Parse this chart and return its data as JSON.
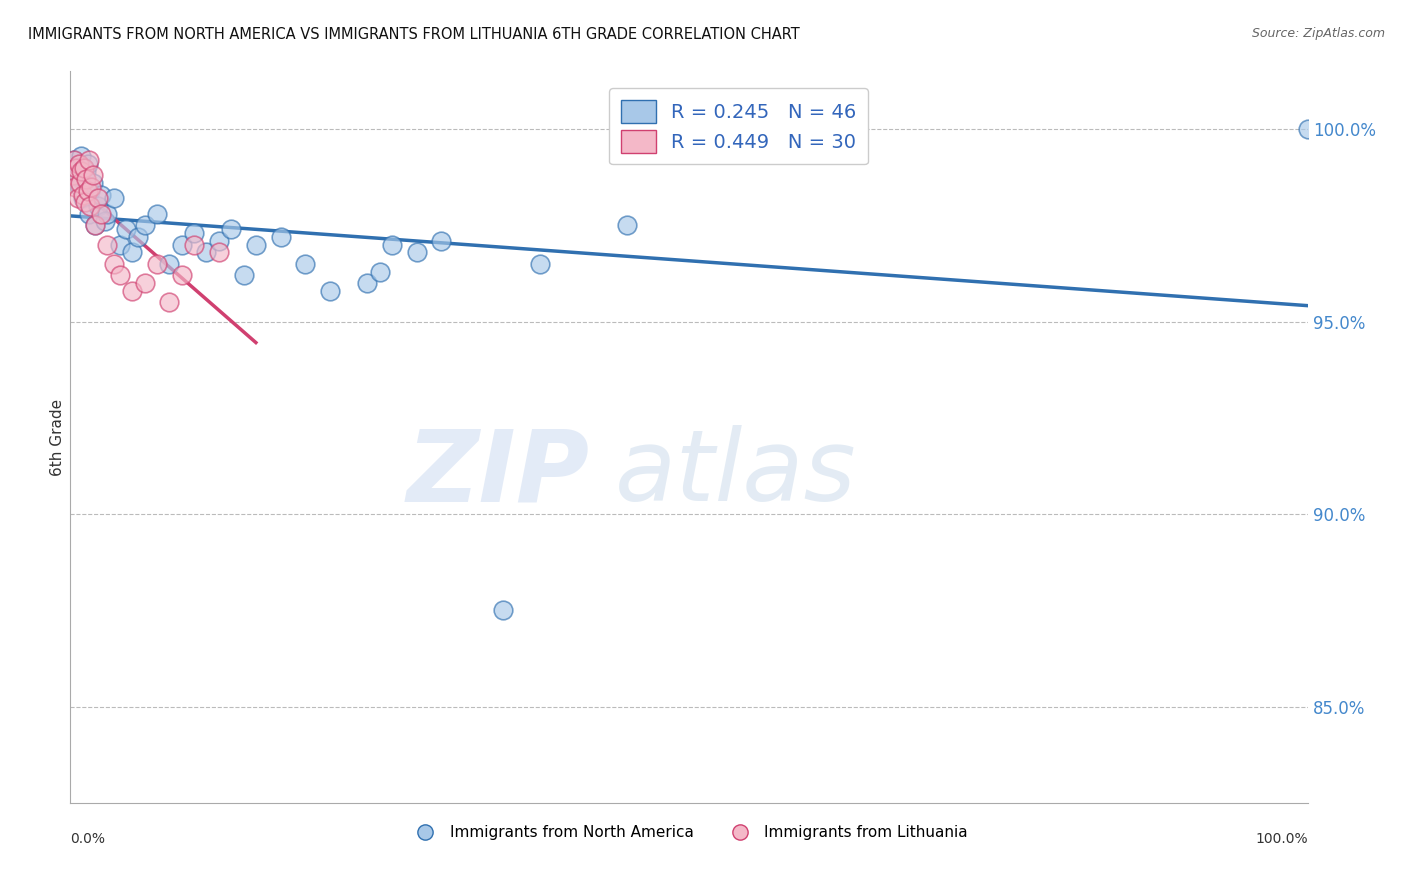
{
  "title": "IMMIGRANTS FROM NORTH AMERICA VS IMMIGRANTS FROM LITHUANIA 6TH GRADE CORRELATION CHART",
  "source": "Source: ZipAtlas.com",
  "ylabel": "6th Grade",
  "yticks": [
    100.0,
    95.0,
    90.0,
    85.0
  ],
  "blue_color": "#a8c8e8",
  "pink_color": "#f4b8c8",
  "blue_line_color": "#3070b0",
  "pink_line_color": "#d04070",
  "legend_blue_R": "0.245",
  "legend_blue_N": "46",
  "legend_pink_R": "0.449",
  "legend_pink_N": "30",
  "blue_scatter_x": [
    0.3,
    0.5,
    0.6,
    0.7,
    0.8,
    0.9,
    1.0,
    1.1,
    1.2,
    1.3,
    1.4,
    1.5,
    1.6,
    1.8,
    2.0,
    2.2,
    2.5,
    2.8,
    3.0,
    3.5,
    4.0,
    4.5,
    5.0,
    5.5,
    6.0,
    7.0,
    8.0,
    9.0,
    10.0,
    11.0,
    12.0,
    13.0,
    14.0,
    15.0,
    17.0,
    19.0,
    21.0,
    24.0,
    25.0,
    26.0,
    28.0,
    30.0,
    35.0,
    38.0,
    45.0,
    100.0
  ],
  "blue_scatter_y": [
    99.2,
    99.0,
    98.8,
    99.1,
    98.5,
    99.3,
    98.2,
    99.0,
    98.7,
    98.9,
    99.1,
    97.8,
    98.4,
    98.6,
    97.5,
    98.0,
    98.3,
    97.6,
    97.8,
    98.2,
    97.0,
    97.4,
    96.8,
    97.2,
    97.5,
    97.8,
    96.5,
    97.0,
    97.3,
    96.8,
    97.1,
    97.4,
    96.2,
    97.0,
    97.2,
    96.5,
    95.8,
    96.0,
    96.3,
    97.0,
    96.8,
    97.1,
    87.5,
    96.5,
    97.5,
    100.0
  ],
  "pink_scatter_x": [
    0.2,
    0.3,
    0.4,
    0.5,
    0.6,
    0.7,
    0.8,
    0.9,
    1.0,
    1.1,
    1.2,
    1.3,
    1.4,
    1.5,
    1.6,
    1.7,
    1.8,
    2.0,
    2.2,
    2.5,
    3.0,
    3.5,
    4.0,
    5.0,
    6.0,
    7.0,
    8.0,
    9.0,
    10.0,
    12.0
  ],
  "pink_scatter_y": [
    98.8,
    99.2,
    98.5,
    99.0,
    98.2,
    99.1,
    98.6,
    98.9,
    98.3,
    99.0,
    98.1,
    98.7,
    98.4,
    99.2,
    98.0,
    98.5,
    98.8,
    97.5,
    98.2,
    97.8,
    97.0,
    96.5,
    96.2,
    95.8,
    96.0,
    96.5,
    95.5,
    96.2,
    97.0,
    96.8
  ],
  "watermark_zip": "ZIP",
  "watermark_atlas": "atlas",
  "background_color": "#ffffff",
  "grid_color": "#bbbbbb",
  "xlim": [
    0,
    100
  ],
  "ylim": [
    82.5,
    101.5
  ]
}
